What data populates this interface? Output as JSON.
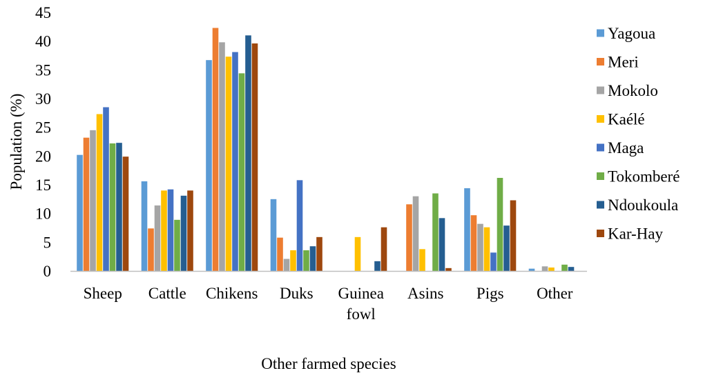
{
  "chart_data": {
    "type": "bar",
    "title": "",
    "xlabel": "Other farmed species",
    "ylabel": "Population (%)",
    "ylim": [
      0,
      45
    ],
    "yticks": [
      "0",
      "5",
      "10",
      "15",
      "20",
      "25",
      "30",
      "35",
      "40",
      "45"
    ],
    "grid": false,
    "legend_position": "right",
    "categories": [
      [
        "Sheep"
      ],
      [
        "Cattle"
      ],
      [
        "Chikens"
      ],
      [
        "Duks"
      ],
      [
        "Guinea",
        "fowl"
      ],
      [
        "Asins"
      ],
      [
        "Pigs"
      ],
      [
        "Other"
      ]
    ],
    "series": [
      {
        "name": "Yagoua",
        "color": "#5B9BD5",
        "values": [
          20.2,
          15.6,
          36.7,
          12.5,
          0,
          0,
          14.4,
          0.4
        ]
      },
      {
        "name": "Meri",
        "color": "#ED7D31",
        "values": [
          23.2,
          7.4,
          42.3,
          5.8,
          0,
          11.6,
          9.7,
          0
        ]
      },
      {
        "name": "Mokolo",
        "color": "#A5A5A5",
        "values": [
          24.5,
          11.4,
          39.8,
          2.1,
          0,
          13.0,
          8.2,
          0.8
        ]
      },
      {
        "name": "Kaélé",
        "color": "#FFC000",
        "values": [
          27.3,
          14.0,
          37.3,
          3.6,
          5.9,
          3.8,
          7.6,
          0.6
        ]
      },
      {
        "name": "Maga",
        "color": "#4472C4",
        "values": [
          28.5,
          14.2,
          38.1,
          15.8,
          0,
          0,
          3.2,
          0
        ]
      },
      {
        "name": "Tokomberé",
        "color": "#70AD47",
        "values": [
          22.2,
          8.9,
          34.4,
          3.6,
          0,
          13.5,
          16.2,
          1.1
        ]
      },
      {
        "name": "Ndoukoula",
        "color": "#255E91",
        "values": [
          22.3,
          13.1,
          41.0,
          4.3,
          1.7,
          9.2,
          7.9,
          0.7
        ]
      },
      {
        "name": "Kar-Hay",
        "color": "#9E480E",
        "values": [
          19.9,
          14.0,
          39.6,
          5.9,
          7.6,
          0.5,
          12.3,
          0
        ]
      }
    ]
  }
}
